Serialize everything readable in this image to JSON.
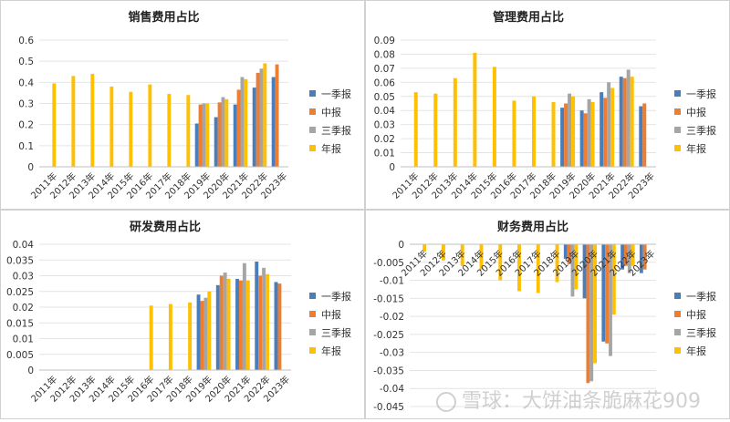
{
  "colors": {
    "一季报": "#4a7ebb",
    "中报": "#ed7d31",
    "三季报": "#a5a5a5",
    "年报": "#ffc000"
  },
  "watermark": "雪球：大饼油条脆麻花909",
  "chart_data": [
    {
      "type": "bar",
      "title": "销售费用占比",
      "categories": [
        "2011年",
        "2012年",
        "2013年",
        "2014年",
        "2015年",
        "2016年",
        "2017年",
        "2018年",
        "2019年",
        "2020年",
        "2021年",
        "2022年",
        "2023年"
      ],
      "ylim": [
        0,
        0.6
      ],
      "yticks": [
        0,
        0.1,
        0.2,
        0.3,
        0.4,
        0.5,
        0.6
      ],
      "ytick_labels": [
        "0",
        "0.1",
        "0.2",
        "0.3",
        "0.4",
        "0.5",
        "0.6"
      ],
      "legend_position": "right",
      "series": [
        {
          "name": "一季报",
          "values": [
            null,
            null,
            null,
            null,
            null,
            null,
            null,
            null,
            0.205,
            0.235,
            0.295,
            0.375,
            0.425
          ]
        },
        {
          "name": "中报",
          "values": [
            null,
            null,
            null,
            null,
            null,
            null,
            null,
            null,
            0.295,
            0.305,
            0.365,
            0.445,
            0.485
          ]
        },
        {
          "name": "三季报",
          "values": [
            null,
            null,
            null,
            null,
            null,
            null,
            null,
            null,
            0.3,
            0.33,
            0.425,
            0.465,
            null
          ]
        },
        {
          "name": "年报",
          "values": [
            0.395,
            0.43,
            0.44,
            0.38,
            0.355,
            0.39,
            0.345,
            0.34,
            0.3,
            0.32,
            0.415,
            0.49,
            null
          ]
        }
      ]
    },
    {
      "type": "bar",
      "title": "管理费用占比",
      "categories": [
        "2011年",
        "2012年",
        "2013年",
        "2014年",
        "2015年",
        "2016年",
        "2017年",
        "2018年",
        "2019年",
        "2020年",
        "2021年",
        "2022年",
        "2023年"
      ],
      "ylim": [
        0,
        0.09
      ],
      "yticks": [
        0,
        0.01,
        0.02,
        0.03,
        0.04,
        0.05,
        0.06,
        0.07,
        0.08,
        0.09
      ],
      "ytick_labels": [
        "0",
        "0.01",
        "0.02",
        "0.03",
        "0.04",
        "0.05",
        "0.06",
        "0.07",
        "0.08",
        "0.09"
      ],
      "legend_position": "right",
      "series": [
        {
          "name": "一季报",
          "values": [
            null,
            null,
            null,
            null,
            null,
            null,
            null,
            null,
            0.042,
            0.04,
            0.053,
            0.064,
            0.043
          ]
        },
        {
          "name": "中报",
          "values": [
            null,
            null,
            null,
            null,
            null,
            null,
            null,
            null,
            0.045,
            0.038,
            0.049,
            0.063,
            0.045
          ]
        },
        {
          "name": "三季报",
          "values": [
            null,
            null,
            null,
            null,
            null,
            null,
            null,
            null,
            0.052,
            0.048,
            0.06,
            0.069,
            null
          ]
        },
        {
          "name": "年报",
          "values": [
            0.053,
            0.052,
            0.063,
            0.081,
            0.071,
            0.047,
            0.05,
            0.046,
            0.05,
            0.046,
            0.056,
            0.064,
            null
          ]
        }
      ]
    },
    {
      "type": "bar",
      "title": "研发费用占比",
      "categories": [
        "2011年",
        "2012年",
        "2013年",
        "2014年",
        "2015年",
        "2016年",
        "2017年",
        "2018年",
        "2019年",
        "2020年",
        "2021年",
        "2022年",
        "2023年"
      ],
      "ylim": [
        0,
        0.04
      ],
      "yticks": [
        0,
        0.005,
        0.01,
        0.015,
        0.02,
        0.025,
        0.03,
        0.035,
        0.04
      ],
      "ytick_labels": [
        "0",
        "0.005",
        "0.01",
        "0.015",
        "0.02",
        "0.025",
        "0.03",
        "0.035",
        "0.04"
      ],
      "legend_position": "right",
      "series": [
        {
          "name": "一季报",
          "values": [
            null,
            null,
            null,
            null,
            null,
            null,
            null,
            null,
            0.024,
            0.027,
            0.029,
            0.0345,
            0.028
          ]
        },
        {
          "name": "中报",
          "values": [
            null,
            null,
            null,
            null,
            null,
            null,
            null,
            null,
            0.022,
            0.03,
            0.0285,
            0.03,
            0.0275
          ]
        },
        {
          "name": "三季报",
          "values": [
            null,
            null,
            null,
            null,
            null,
            null,
            null,
            null,
            0.023,
            0.031,
            0.034,
            0.0325,
            null
          ]
        },
        {
          "name": "年报",
          "values": [
            null,
            null,
            null,
            null,
            null,
            0.0205,
            0.021,
            0.0215,
            0.025,
            0.029,
            0.0285,
            0.0305,
            null
          ]
        }
      ]
    },
    {
      "type": "bar",
      "title": "财务费用占比",
      "categories": [
        "2011年",
        "2012年",
        "2013年",
        "2014年",
        "2015年",
        "2016年",
        "2017年",
        "2018年",
        "2019年",
        "2020年",
        "2021年",
        "2022年",
        "2023年"
      ],
      "ylim": [
        -0.045,
        0
      ],
      "yticks": [
        0,
        -0.005,
        -0.01,
        -0.015,
        -0.02,
        -0.025,
        -0.03,
        -0.035,
        -0.04,
        -0.045
      ],
      "ytick_labels": [
        "0",
        "-0.005",
        "-0.01",
        "-0.015",
        "-0.02",
        "-0.025",
        "-0.03",
        "-0.035",
        "-0.04",
        "-0.045"
      ],
      "legend_position": "right",
      "series": [
        {
          "name": "一季报",
          "values": [
            null,
            null,
            null,
            null,
            null,
            null,
            null,
            null,
            -0.004,
            -0.015,
            -0.027,
            -0.007,
            -0.008
          ]
        },
        {
          "name": "中报",
          "values": [
            null,
            null,
            null,
            null,
            null,
            null,
            null,
            null,
            -0.0055,
            -0.0385,
            -0.0275,
            -0.006,
            -0.007
          ]
        },
        {
          "name": "三季报",
          "values": [
            null,
            null,
            null,
            null,
            null,
            null,
            null,
            null,
            -0.0145,
            -0.038,
            -0.031,
            -0.008,
            null
          ]
        },
        {
          "name": "年报",
          "values": [
            -0.002,
            -0.0045,
            -0.006,
            -0.007,
            -0.01,
            -0.013,
            -0.0135,
            -0.0105,
            -0.0125,
            -0.033,
            -0.0195,
            -0.006,
            null
          ]
        }
      ]
    }
  ]
}
